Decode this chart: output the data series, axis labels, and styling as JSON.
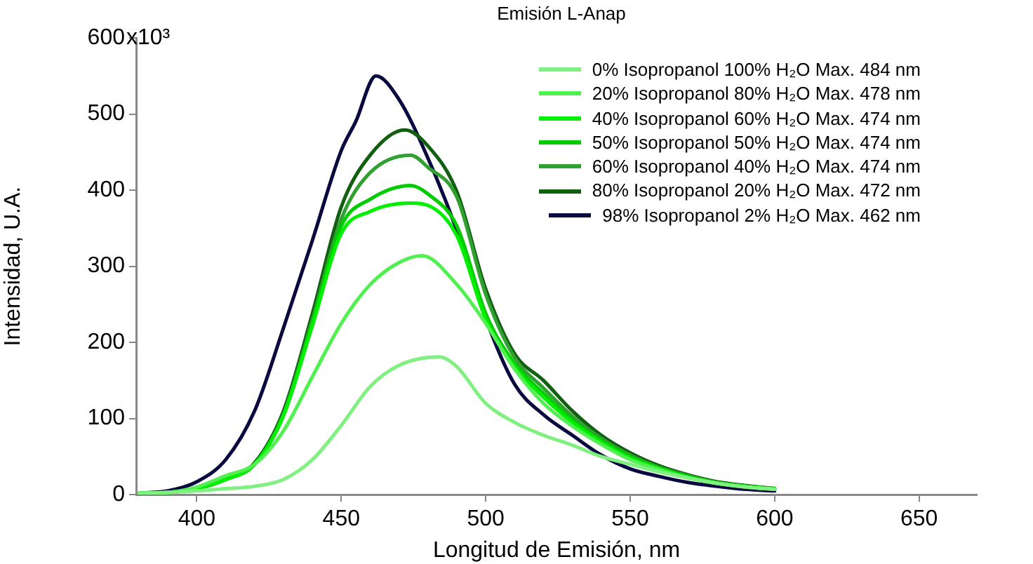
{
  "chart_data": {
    "type": "line",
    "title": "Emisión L-Anap",
    "xlabel": "Longitud de Emisión, nm",
    "ylabel": "Intensidad, U.A.",
    "xlim": [
      379,
      670
    ],
    "xticks": [
      400,
      450,
      500,
      550,
      600,
      650
    ],
    "ylim": [
      0,
      600
    ],
    "yticks": [
      0,
      100,
      200,
      300,
      400,
      500,
      600
    ],
    "annotations": [
      "x10³"
    ],
    "grid": false,
    "legend": "top right",
    "marker": "none",
    "line_style": "solid",
    "series": [
      {
        "name": "0% Isopropanol 100% H₂O Max. 484 nm",
        "color": "#80f080",
        "x": [
          380,
          390,
          400,
          410,
          420,
          430,
          440,
          450,
          460,
          470,
          484,
          490,
          500,
          510,
          520,
          530,
          540,
          550,
          560,
          570,
          580,
          590,
          600
        ],
        "values": [
          2,
          3,
          5,
          8,
          11,
          20,
          46,
          91,
          142,
          170,
          181,
          168,
          120,
          95,
          78,
          65,
          50,
          40,
          30,
          22,
          15,
          10,
          7
        ]
      },
      {
        "name": "20% Isopropanol 80% H₂O Max. 478 nm",
        "color": "#50f050",
        "x": [
          380,
          390,
          400,
          410,
          420,
          430,
          440,
          450,
          460,
          470,
          478,
          490,
          500,
          510,
          520,
          530,
          540,
          550,
          560,
          570,
          580,
          590,
          600
        ],
        "values": [
          2,
          3,
          10,
          25,
          40,
          84,
          155,
          225,
          276,
          305,
          314,
          276,
          225,
          165,
          120,
          90,
          66,
          46,
          33,
          22,
          15,
          10,
          7
        ]
      },
      {
        "name": "40% Isopropanol 60% H₂O Max. 474 nm",
        "color": "#00f000",
        "x": [
          380,
          390,
          400,
          410,
          420,
          430,
          440,
          450,
          460,
          474,
          480,
          490,
          500,
          510,
          520,
          530,
          540,
          550,
          560,
          570,
          580,
          590,
          600
        ],
        "values": [
          2,
          3,
          8,
          20,
          40,
          104,
          222,
          343,
          372,
          383,
          380,
          340,
          231,
          168,
          128,
          95,
          69,
          48,
          34,
          23,
          15,
          11,
          7
        ]
      },
      {
        "name": "50% Isopropanol 50% H₂O Max. 474 nm",
        "color": "#00cc00",
        "x": [
          380,
          390,
          400,
          410,
          420,
          430,
          440,
          450,
          460,
          474,
          480,
          490,
          500,
          510,
          520,
          530,
          540,
          550,
          560,
          570,
          580,
          590,
          600
        ],
        "values": [
          2,
          3,
          8,
          20,
          40,
          104,
          226,
          353,
          388,
          406,
          395,
          353,
          238,
          172,
          133,
          98,
          71,
          50,
          35,
          24,
          16,
          11,
          8
        ]
      },
      {
        "name": "60% Isopropanol 40% H₂O Max. 474 nm",
        "color": "#30a030",
        "x": [
          380,
          390,
          400,
          410,
          420,
          430,
          440,
          450,
          460,
          474,
          480,
          490,
          500,
          510,
          520,
          530,
          540,
          550,
          560,
          570,
          580,
          590,
          600
        ],
        "values": [
          2,
          3,
          8,
          20,
          40,
          106,
          230,
          362,
          423,
          446,
          430,
          391,
          263,
          180,
          140,
          103,
          74,
          52,
          36,
          25,
          16,
          11,
          8
        ]
      },
      {
        "name": "80% Isopropanol 20% H₂O Max. 472 nm",
        "color": "#106010",
        "x": [
          380,
          390,
          400,
          410,
          420,
          430,
          440,
          450,
          460,
          472,
          480,
          490,
          500,
          510,
          520,
          530,
          540,
          550,
          560,
          570,
          580,
          590,
          600
        ],
        "values": [
          2,
          3,
          8,
          20,
          42,
          110,
          238,
          378,
          446,
          479,
          458,
          398,
          270,
          185,
          150,
          110,
          78,
          55,
          38,
          26,
          17,
          12,
          8
        ]
      },
      {
        "name": "98% Isopropanol 2% H₂O Max. 462 nm",
        "color": "#0a0a40",
        "x": [
          380,
          390,
          400,
          410,
          420,
          430,
          440,
          450,
          455,
          462,
          470,
          480,
          490,
          500,
          510,
          520,
          530,
          540,
          550,
          560,
          570,
          580,
          590,
          600
        ],
        "values": [
          2,
          5,
          17,
          46,
          110,
          219,
          334,
          452,
          490,
          550,
          519,
          442,
          347,
          231,
          145,
          105,
          78,
          52,
          34,
          24,
          16,
          11,
          7,
          5
        ]
      }
    ]
  }
}
